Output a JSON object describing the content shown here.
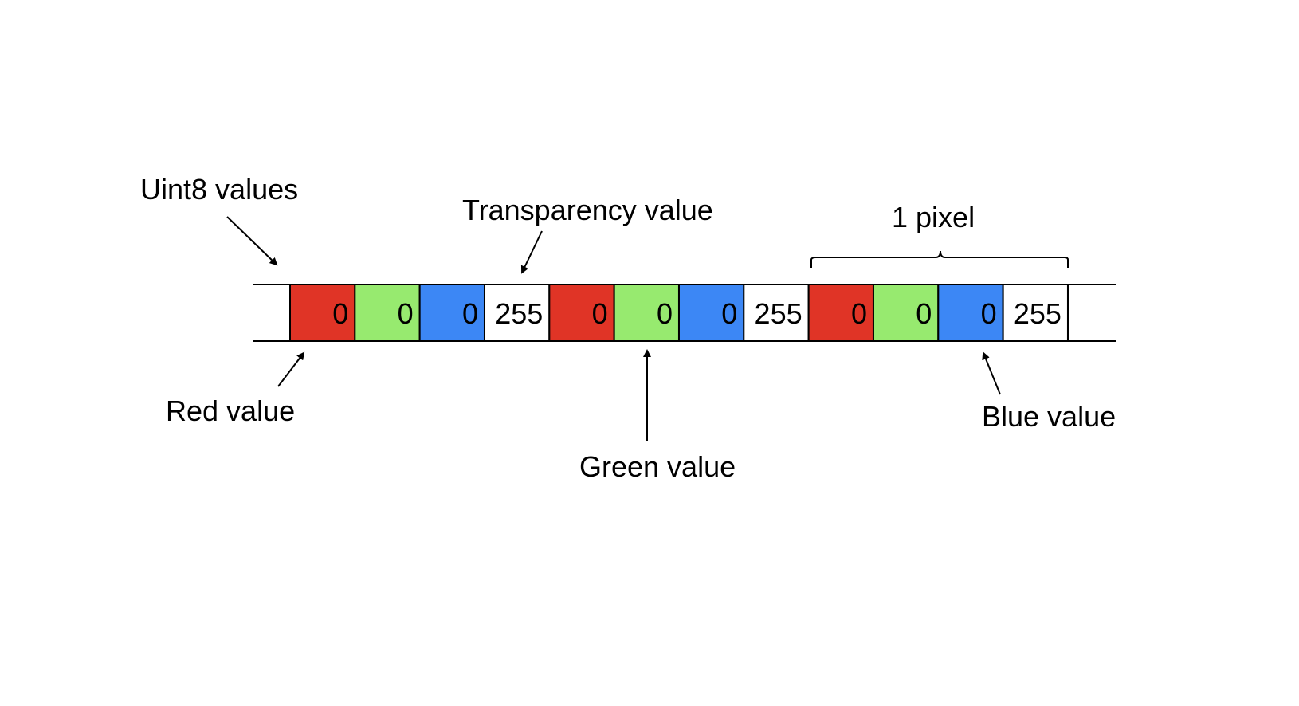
{
  "labels": {
    "uint8": "Uint8 values",
    "transparency": "Transparency value",
    "pixel": "1 pixel",
    "red": "Red value",
    "green": "Green value",
    "blue": "Blue value"
  },
  "cells": [
    {
      "channel": "red",
      "value": "0",
      "color": "#e03426"
    },
    {
      "channel": "green",
      "value": "0",
      "color": "#97ea6f"
    },
    {
      "channel": "blue",
      "value": "0",
      "color": "#3c87f5"
    },
    {
      "channel": "alpha",
      "value": "255",
      "color": "#ffffff"
    },
    {
      "channel": "red",
      "value": "0",
      "color": "#e03426"
    },
    {
      "channel": "green",
      "value": "0",
      "color": "#97ea6f"
    },
    {
      "channel": "blue",
      "value": "0",
      "color": "#3c87f5"
    },
    {
      "channel": "alpha",
      "value": "255",
      "color": "#ffffff"
    },
    {
      "channel": "red",
      "value": "0",
      "color": "#e03426"
    },
    {
      "channel": "green",
      "value": "0",
      "color": "#97ea6f"
    },
    {
      "channel": "blue",
      "value": "0",
      "color": "#3c87f5"
    },
    {
      "channel": "alpha",
      "value": "255",
      "color": "#ffffff"
    }
  ]
}
